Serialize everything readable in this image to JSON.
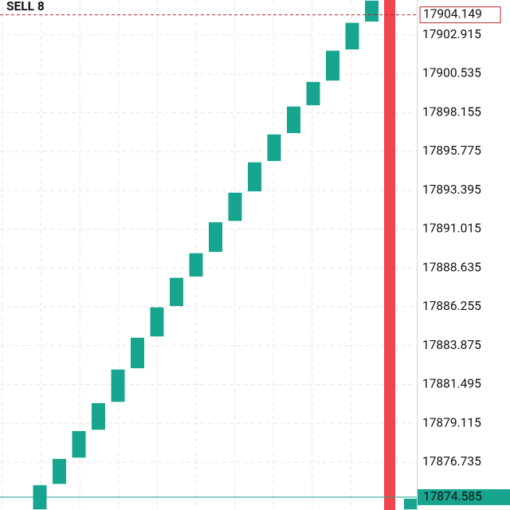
{
  "chart_data": {
    "type": "candlestick",
    "color": "#17a58f",
    "open": [
      17873.8,
      17875.36,
      17876.97,
      17878.68,
      17880.39,
      17882.45,
      17884.4,
      17886.26,
      17888.07,
      17889.58,
      17891.48,
      17893.29,
      17895.15,
      17896.86,
      17898.57,
      17900.08,
      17901.99,
      17903.7,
      null,
      17873.8
    ],
    "close": [
      17875.36,
      17876.97,
      17878.68,
      17880.39,
      17882.45,
      17884.4,
      17886.26,
      17888.07,
      17889.58,
      17891.48,
      17893.29,
      17895.15,
      17896.86,
      17898.57,
      17900.08,
      17901.99,
      17903.7,
      17905.06,
      null,
      17874.53
    ],
    "ylim": [
      17873.8,
      17905.06
    ],
    "yticks": [
      17902.915,
      17900.535,
      17898.155,
      17895.775,
      17893.395,
      17891.015,
      17888.635,
      17886.255,
      17883.875,
      17881.495,
      17879.115,
      17876.735
    ],
    "grid": true,
    "price_lines": [
      {
        "label": "SELL 8",
        "value": 17904.149,
        "color": "#b8262b"
      },
      {
        "value": 17874.585,
        "color": "#17a58f"
      }
    ]
  }
}
